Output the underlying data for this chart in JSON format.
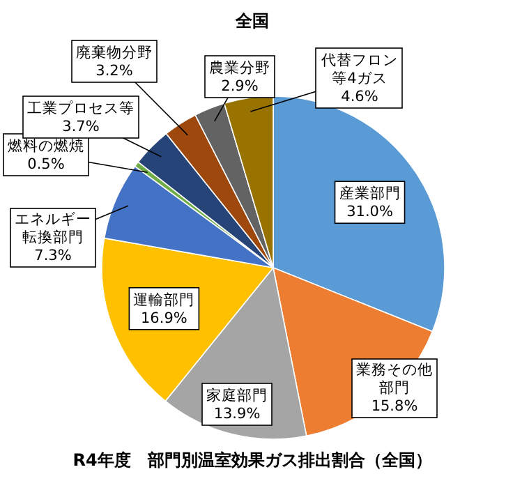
{
  "chart_data": {
    "type": "pie",
    "title": "全国",
    "categories": [
      "産業部門",
      "業務その他部門",
      "家庭部門",
      "運輸部門",
      "エネルギー転換部門",
      "燃料の燃焼",
      "工業プロセス等",
      "廃棄物分野",
      "農業分野",
      "代替フロン等4ガス"
    ],
    "values": [
      31.0,
      15.8,
      13.9,
      16.9,
      7.3,
      0.5,
      3.7,
      3.2,
      2.9,
      4.6
    ],
    "value_labels": [
      "31.0%",
      "15.8%",
      "13.9%",
      "16.9%",
      "7.3%",
      "0.5%",
      "3.7%",
      "3.2%",
      "2.9%",
      "4.6%"
    ],
    "colors": [
      "#5b9bd5",
      "#ed7d31",
      "#a5a5a5",
      "#ffc000",
      "#4472c4",
      "#70ad47",
      "#264478",
      "#9e480e",
      "#636363",
      "#997300"
    ],
    "annotations": [
      "R4年度　部門別温室効果ガス排出割合（全国）"
    ]
  }
}
